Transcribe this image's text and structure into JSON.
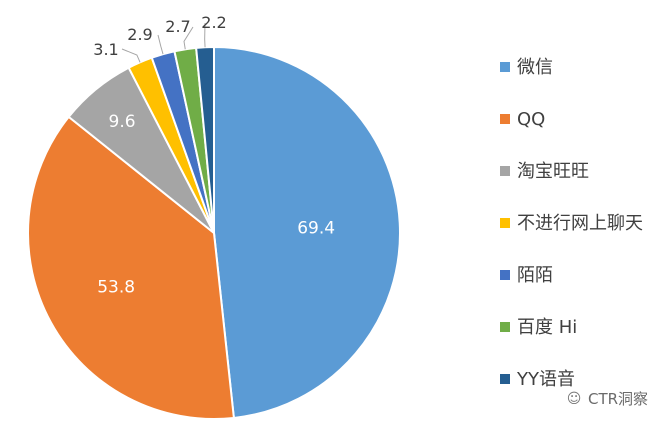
{
  "chart_data": {
    "type": "pie",
    "title": "",
    "series": [
      {
        "name": "",
        "values": [
          69.4,
          53.8,
          9.6,
          3.1,
          2.9,
          2.7,
          2.2
        ]
      }
    ],
    "categories": [
      "微信",
      "QQ",
      "淘宝旺旺",
      "不进行网上聊天",
      "陌陌",
      "百度 Hi",
      "YY语音"
    ],
    "data_labels": [
      "69.4",
      "53.8",
      "9.6",
      "3.1",
      "2.9",
      "2.7",
      "2.2"
    ],
    "colors": [
      "#5b9bd5",
      "#ed7d31",
      "#a5a5a5",
      "#ffc000",
      "#4472c4",
      "#70ad47",
      "#255e91"
    ],
    "legend": "right",
    "start_angle": "12 o'clock",
    "direction": "clockwise"
  },
  "watermark": {
    "text": "CTR洞察",
    "icon": "wechat-icon"
  }
}
